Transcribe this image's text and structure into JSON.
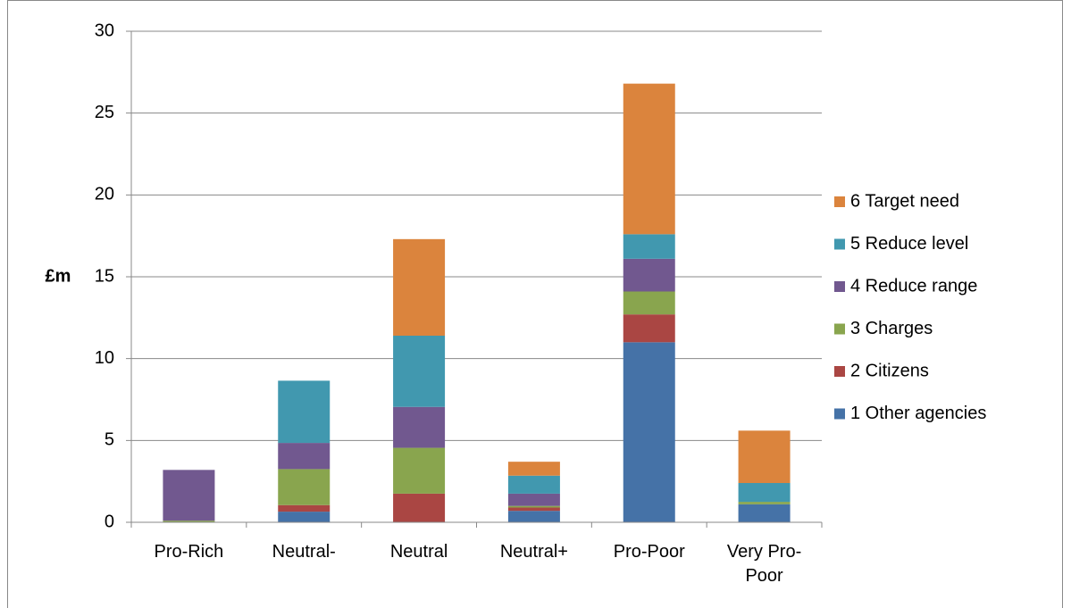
{
  "chart_data": {
    "type": "stacked_bar",
    "y_label": "£m",
    "categories": [
      "Pro-Rich",
      "Neutral-",
      "Neutral",
      "Neutral+",
      "Pro-Poor",
      "Very Pro-Poor"
    ],
    "series": [
      {
        "name": "1 Other agencies",
        "color": "#4572a7",
        "values": [
          0,
          0.65,
          0,
          0.7,
          11.0,
          1.1
        ]
      },
      {
        "name": "2 Citizens",
        "color": "#aa4643",
        "values": [
          0,
          0.4,
          1.75,
          0.2,
          1.7,
          0
        ]
      },
      {
        "name": "3 Charges",
        "color": "#89a54e",
        "values": [
          0.1,
          2.2,
          2.8,
          0.1,
          1.4,
          0.15
        ]
      },
      {
        "name": "4 Reduce range",
        "color": "#71588f",
        "values": [
          3.1,
          1.6,
          2.5,
          0.75,
          2.0,
          0
        ]
      },
      {
        "name": "5 Reduce level",
        "color": "#4198af",
        "values": [
          0,
          3.8,
          4.35,
          1.1,
          1.5,
          1.15
        ]
      },
      {
        "name": "6 Target need",
        "color": "#db843d",
        "values": [
          0,
          0,
          5.9,
          0.85,
          9.2,
          3.2
        ]
      }
    ],
    "ylim": [
      0,
      30
    ],
    "yticks": [
      0,
      5,
      10,
      15,
      20,
      25,
      30
    ],
    "grid": true,
    "legend": "right"
  }
}
